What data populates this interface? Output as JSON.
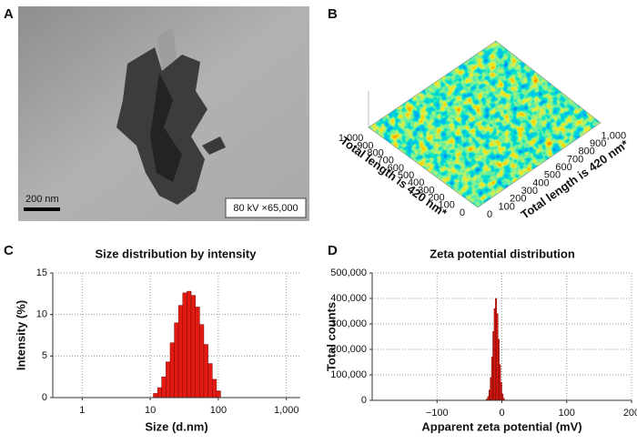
{
  "panel_labels": [
    "A",
    "B",
    "C",
    "D"
  ],
  "tem_image": {
    "scale_bar": "200 nm",
    "caption": "80 kV ×65,000"
  },
  "afm_image": {
    "axis_label_left": "Total length is 420 nm*",
    "axis_label_right": "Total length is 420 nm*",
    "left_ticks": [
      "0",
      "100",
      "200",
      "300",
      "400",
      "500",
      "600",
      "700",
      "800",
      "900",
      "1,000"
    ],
    "right_ticks": [
      "0",
      "100",
      "200",
      "300",
      "400",
      "500",
      "600",
      "700",
      "800",
      "900",
      "1,000"
    ]
  },
  "chart_data": [
    {
      "type": "histogram",
      "title": "Size distribution by intensity",
      "x_label": "Size (d.nm)",
      "y_label": "Intensity (%)",
      "xscale": "log",
      "xlim": [
        0.37,
        1600
      ],
      "xticks": [
        1,
        10,
        100,
        {
          "value": 1000,
          "label": "1,000"
        }
      ],
      "ylim": [
        0,
        15
      ],
      "yticks": [
        0,
        5,
        10,
        15
      ],
      "grid": true,
      "color": "#e31a12",
      "bins": [
        11.1,
        12.8,
        14.7,
        17.0,
        19.6,
        22.6,
        26.0,
        30.0,
        34.6,
        39.9,
        46.0,
        53.1,
        61.2,
        70.6,
        81.4,
        93.9,
        108
      ],
      "values": [
        0.5,
        1.2,
        2.5,
        4.3,
        6.6,
        9.0,
        11.1,
        12.6,
        12.8,
        12.3,
        10.9,
        8.8,
        6.4,
        4.1,
        2.2,
        0.8
      ]
    },
    {
      "type": "histogram",
      "title": "Zeta potential distribution",
      "x_label": "Apparent zeta potential (mV)",
      "y_label": "Total counts",
      "xlim": [
        -200,
        200
      ],
      "xticks": [
        {
          "value": -100,
          "label": "−100"
        },
        0,
        100,
        200
      ],
      "ylim": [
        0,
        500000
      ],
      "yticks": [
        0,
        {
          "value": 100000,
          "label": "100,000"
        },
        {
          "value": 200000,
          "label": "200,000"
        },
        {
          "value": 300000,
          "label": "300,000"
        },
        {
          "value": 400000,
          "label": "400,000"
        },
        {
          "value": 500000,
          "label": "500,000"
        }
      ],
      "grid": true,
      "color": "#e31a12",
      "bins": [
        -24,
        -22,
        -20,
        -18,
        -16,
        -14,
        -12,
        -10,
        -8,
        -6,
        -4,
        -2,
        0,
        2,
        4
      ],
      "values": [
        5000,
        15000,
        40000,
        90000,
        170000,
        270000,
        360000,
        400000,
        340000,
        240000,
        140000,
        70000,
        25000,
        8000
      ]
    }
  ]
}
